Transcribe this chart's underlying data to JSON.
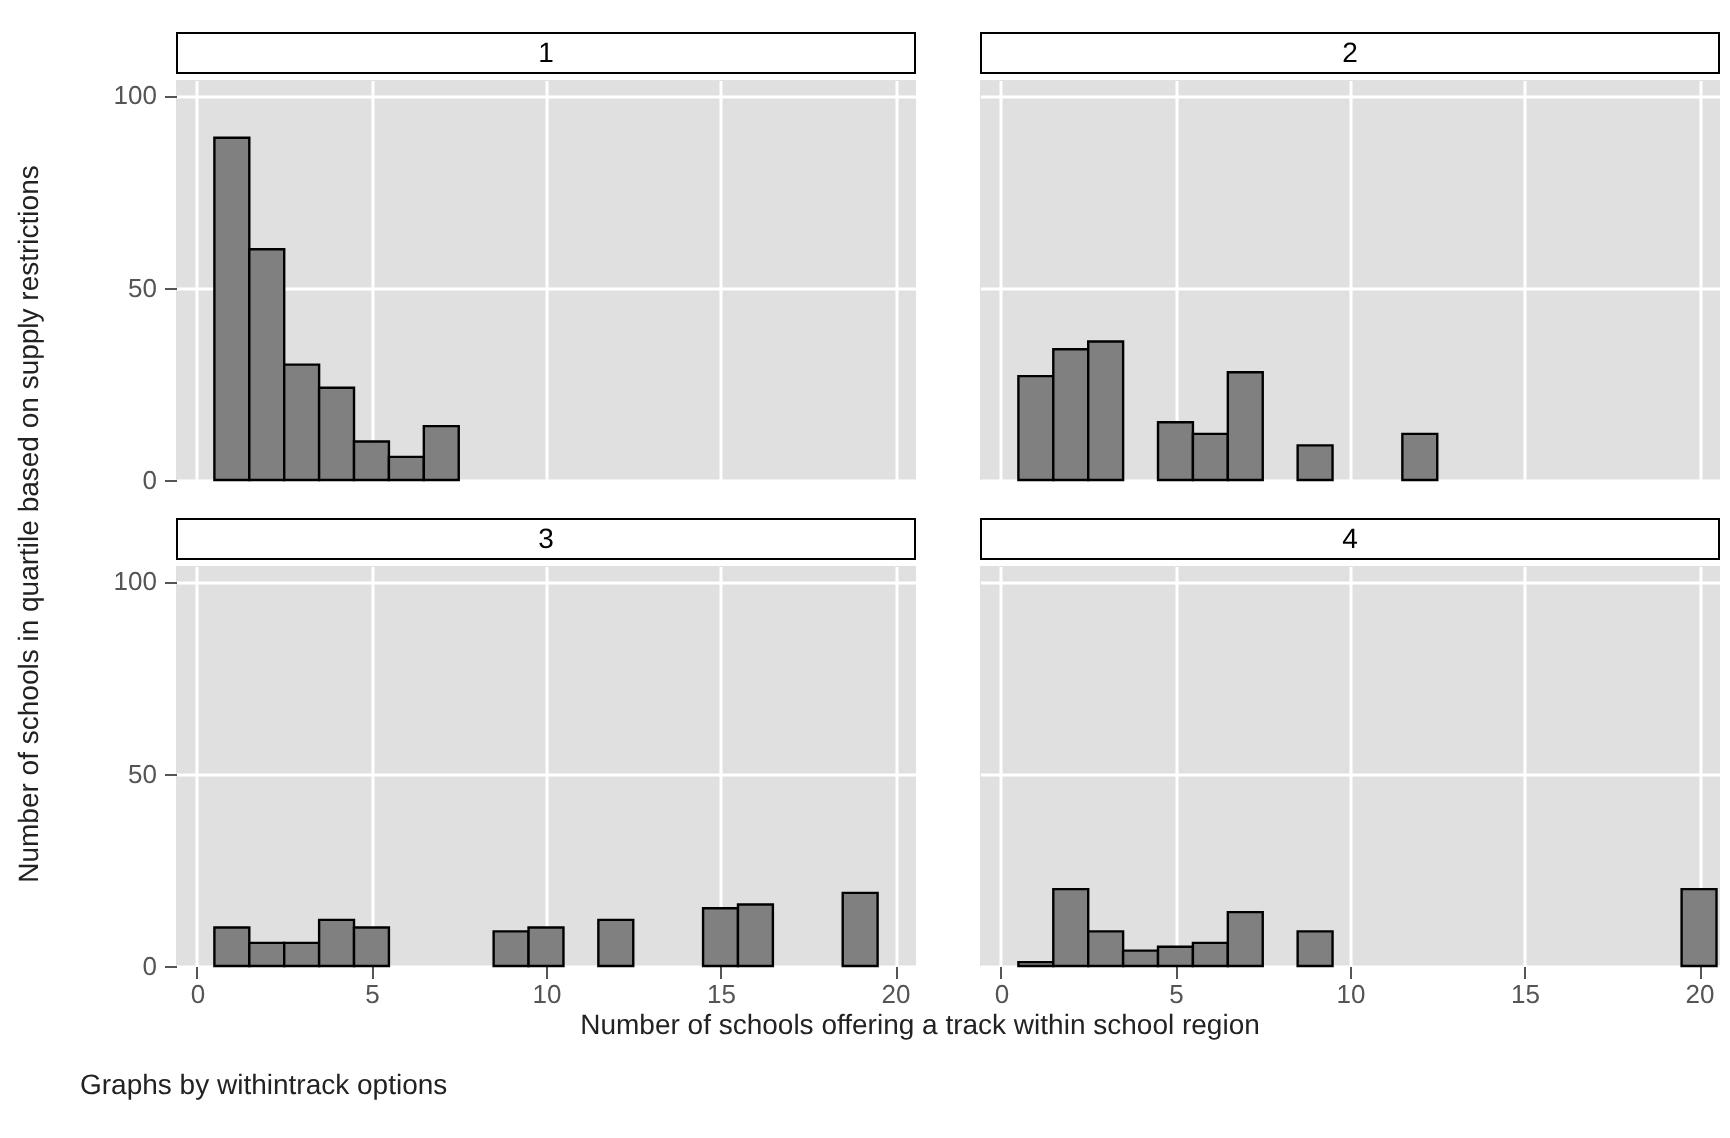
{
  "chart_data": [
    {
      "type": "histogram",
      "title": "1",
      "ylabel": "Number of schools in quartile based on supply restrictions",
      "bins": [
        0.5,
        1.5,
        2.5,
        3.5,
        4.5,
        5.5,
        6.5,
        7.5,
        8.5,
        9.5,
        10.5,
        11.5,
        12.5,
        13.5,
        14.5,
        15.5,
        16.5,
        17.5,
        18.5,
        19.5,
        20.5
      ],
      "values": [
        89,
        60,
        30,
        24,
        10,
        6,
        14,
        0,
        0,
        0,
        0,
        0,
        0,
        0,
        0,
        0,
        0,
        0,
        0,
        0
      ],
      "color": "#808080",
      "xlim": [
        -0.6,
        20.6
      ],
      "ylim": [
        0,
        104
      ],
      "xticks": [
        0,
        5,
        10,
        15,
        20
      ],
      "yticks": [
        0,
        50,
        100
      ],
      "grid": true,
      "tick_labels": "y"
    },
    {
      "type": "histogram",
      "title": "2",
      "bins": [
        0.5,
        1.5,
        2.5,
        3.5,
        4.5,
        5.5,
        6.5,
        7.5,
        8.5,
        9.5,
        10.5,
        11.5,
        12.5,
        13.5,
        14.5,
        15.5,
        16.5,
        17.5,
        18.5,
        19.5,
        20.5
      ],
      "values": [
        27,
        34,
        36,
        0,
        15,
        12,
        28,
        0,
        9,
        0,
        0,
        12,
        0,
        0,
        0,
        0,
        0,
        0,
        0,
        0
      ],
      "color": "#808080",
      "xlim": [
        -0.6,
        20.6
      ],
      "ylim": [
        0,
        104
      ],
      "xticks": [
        0,
        5,
        10,
        15,
        20
      ],
      "yticks": [
        0,
        50,
        100
      ],
      "grid": true,
      "tick_labels": false
    },
    {
      "type": "histogram",
      "title": "3",
      "xlabel": "Number of schools offering a track within school region",
      "annotations": [
        "Graphs by withintrack  options"
      ],
      "bins": [
        0.5,
        1.5,
        2.5,
        3.5,
        4.5,
        5.5,
        6.5,
        7.5,
        8.5,
        9.5,
        10.5,
        11.5,
        12.5,
        13.5,
        14.5,
        15.5,
        16.5,
        17.5,
        18.5,
        19.5,
        20.5
      ],
      "values": [
        10,
        6,
        6,
        12,
        10,
        0,
        0,
        0,
        9,
        10,
        0,
        12,
        0,
        0,
        15,
        16,
        0,
        0,
        19,
        0
      ],
      "color": "#808080",
      "xlim": [
        -0.6,
        20.6
      ],
      "ylim": [
        0,
        104
      ],
      "xticks": [
        0,
        5,
        10,
        15,
        20
      ],
      "yticks": [
        0,
        50,
        100
      ],
      "grid": true
    },
    {
      "type": "histogram",
      "title": "4",
      "bins": [
        0.5,
        1.5,
        2.5,
        3.5,
        4.5,
        5.5,
        6.5,
        7.5,
        8.5,
        9.5,
        10.5,
        11.5,
        12.5,
        13.5,
        14.5,
        15.5,
        16.5,
        17.5,
        18.5,
        19.5,
        20.5
      ],
      "values": [
        1,
        20,
        9,
        4,
        5,
        6,
        14,
        0,
        9,
        0,
        0,
        0,
        0,
        0,
        0,
        0,
        0,
        0,
        0,
        20
      ],
      "color": "#808080",
      "xlim": [
        -0.6,
        20.6
      ],
      "ylim": [
        0,
        104
      ],
      "xticks": [
        0,
        5,
        10,
        15,
        20
      ],
      "yticks": [
        0,
        50,
        100
      ],
      "grid": true,
      "tick_labels": "x"
    }
  ]
}
